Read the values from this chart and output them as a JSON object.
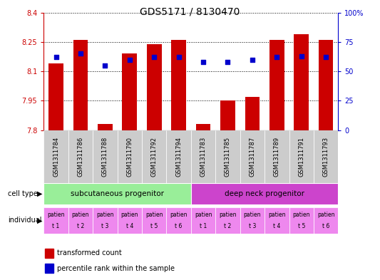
{
  "title": "GDS5171 / 8130470",
  "samples": [
    "GSM1311784",
    "GSM1311786",
    "GSM1311788",
    "GSM1311790",
    "GSM1311792",
    "GSM1311794",
    "GSM1311783",
    "GSM1311785",
    "GSM1311787",
    "GSM1311789",
    "GSM1311791",
    "GSM1311793"
  ],
  "bar_values": [
    8.14,
    8.26,
    7.83,
    8.19,
    8.24,
    8.26,
    7.83,
    7.95,
    7.97,
    8.26,
    8.29,
    8.26
  ],
  "percentile_values": [
    62,
    65,
    55,
    60,
    62,
    62,
    58,
    58,
    60,
    62,
    63,
    62
  ],
  "y_min": 7.8,
  "y_max": 8.4,
  "y_ticks": [
    7.8,
    7.95,
    8.1,
    8.25,
    8.4
  ],
  "y_tick_labels": [
    "7.8",
    "7.95",
    "8.1",
    "8.25",
    "8.4"
  ],
  "y2_ticks": [
    0,
    25,
    50,
    75,
    100
  ],
  "y2_tick_labels": [
    "0",
    "25",
    "50",
    "75",
    "100%"
  ],
  "bar_color": "#cc0000",
  "dot_color": "#0000cc",
  "cell_type_groups": [
    {
      "label": "subcutaneous progenitor",
      "start": 0,
      "end": 6,
      "color": "#99ee99"
    },
    {
      "label": "deep neck progenitor",
      "start": 6,
      "end": 12,
      "color": "#cc44cc"
    }
  ],
  "individual_labels": [
    "t 1",
    "t 2",
    "t 3",
    "t 4",
    "t 5",
    "t 6",
    "t 1",
    "t 2",
    "t 3",
    "t 4",
    "t 5",
    "t 6"
  ],
  "individual_bg": "#ee88ee",
  "ylabel_left": "transformed count",
  "ylabel_right": "percentile rank within the sample",
  "left_axis_color": "#cc0000",
  "right_axis_color": "#0000cc",
  "bg_color": "#ffffff",
  "plot_bg": "#ffffff",
  "xticklabel_bg": "#cccccc",
  "title_fontsize": 10,
  "tick_fontsize": 7,
  "sample_fontsize": 6
}
